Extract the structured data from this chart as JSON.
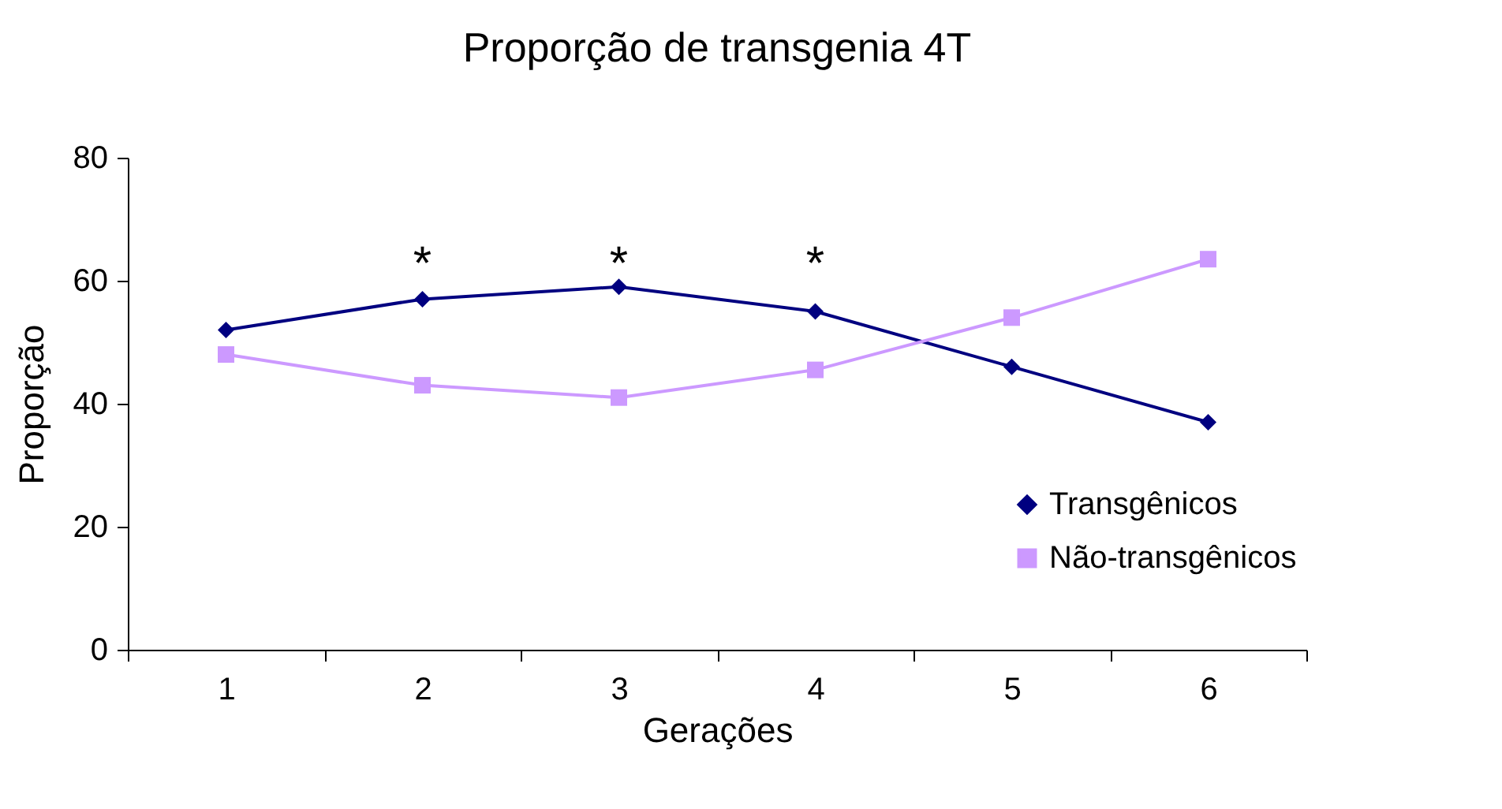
{
  "chart_data": {
    "type": "line",
    "title": "Proporção de transgenia 4T",
    "xlabel": "Gerações",
    "ylabel": "Proporção",
    "categories": [
      "1",
      "2",
      "3",
      "4",
      "5",
      "6"
    ],
    "series": [
      {
        "name": "Transgênicos",
        "color": "#000080",
        "marker": "diamond",
        "values": [
          52,
          57,
          59,
          55,
          46,
          37
        ]
      },
      {
        "name": "Não-transgênicos",
        "color": "#cc99ff",
        "marker": "square",
        "values": [
          48,
          43,
          41,
          45.5,
          54,
          63.5
        ]
      }
    ],
    "ylim": [
      0,
      80
    ],
    "yticks": [
      0,
      20,
      40,
      60,
      80
    ],
    "grid": false,
    "legend": "bottom right",
    "annotations": [
      "*",
      "*",
      "*"
    ]
  }
}
